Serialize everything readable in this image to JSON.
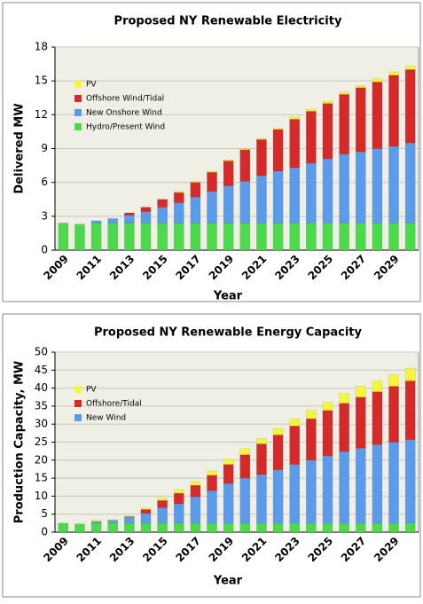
{
  "chart_data": [
    {
      "type": "stacked_bar",
      "title": "Proposed NY Renewable Electricity",
      "x_label": "Year",
      "y_label": "Delivered MW",
      "categories": [
        "2009",
        null,
        "2011",
        null,
        "2013",
        null,
        "2015",
        null,
        "2017",
        null,
        "2019",
        null,
        "2021",
        null,
        "2023",
        null,
        "2025",
        null,
        "2027",
        null,
        "2029",
        null
      ],
      "series": [
        {
          "name": "Hydro/Present Wind",
          "color": "#4cd94c",
          "values": [
            2.4,
            2.3,
            2.4,
            2.4,
            2.4,
            2.4,
            2.4,
            2.4,
            2.4,
            2.4,
            2.4,
            2.4,
            2.4,
            2.4,
            2.4,
            2.4,
            2.4,
            2.4,
            2.4,
            2.4,
            2.4,
            2.4
          ]
        },
        {
          "name": "New Onshore Wind",
          "color": "#5b9bea",
          "values": [
            0,
            0,
            0.2,
            0.4,
            0.7,
            1.0,
            1.4,
            1.8,
            2.3,
            2.8,
            3.3,
            3.7,
            4.2,
            4.6,
            4.9,
            5.3,
            5.7,
            6.1,
            6.3,
            6.6,
            6.8,
            7.1
          ]
        },
        {
          "name": "Offshore Wind/Tidal",
          "color": "#d42a2a",
          "values": [
            0,
            0,
            0,
            0,
            0.2,
            0.4,
            0.7,
            0.9,
            1.3,
            1.7,
            2.2,
            2.8,
            3.2,
            3.7,
            4.3,
            4.6,
            4.9,
            5.3,
            5.7,
            5.9,
            6.3,
            6.5
          ]
        },
        {
          "name": "PV",
          "color": "#f5f53a",
          "values": [
            0,
            0,
            0,
            0,
            0,
            0,
            0,
            0.1,
            0.1,
            0.1,
            0.1,
            0.1,
            0.1,
            0.1,
            0.2,
            0.2,
            0.2,
            0.2,
            0.2,
            0.3,
            0.3,
            0.3
          ]
        }
      ],
      "ylim": [
        0,
        18
      ],
      "yticks": [
        0,
        3,
        6,
        9,
        12,
        15,
        18
      ],
      "grid": true,
      "legend": "upper left"
    },
    {
      "type": "stacked_bar",
      "title": "Proposed NY Renewable Energy Capacity",
      "x_label": "Year",
      "y_label": "Production Capacity, MW",
      "categories": [
        "2009",
        null,
        "2011",
        null,
        "2013",
        null,
        "2015",
        null,
        "2017",
        null,
        "2019",
        null,
        "2021",
        null,
        "2023",
        null,
        "2025",
        null,
        "2027",
        null,
        "2029",
        null
      ],
      "series": [
        {
          "color": "#4cd94c",
          "values": [
            2.5,
            2.3,
            2.5,
            2.5,
            2.5,
            2.5,
            2.5,
            2.5,
            2.5,
            2.5,
            2.5,
            2.5,
            2.5,
            2.5,
            2.5,
            2.5,
            2.5,
            2.5,
            2.5,
            2.5,
            2.5,
            2.5
          ]
        },
        {
          "name": "New Wind",
          "color": "#5b9bea",
          "values": [
            0,
            0,
            0.5,
            0.8,
            1.7,
            2.7,
            4.3,
            5.4,
            7.3,
            9.0,
            11.0,
            12.5,
            13.5,
            14.8,
            16.3,
            17.5,
            18.7,
            19.9,
            20.8,
            21.8,
            22.5,
            23.2
          ]
        },
        {
          "name": "Offshore/Tidal",
          "color": "#d42a2a",
          "values": [
            0,
            0,
            0,
            0,
            0.1,
            1.1,
            2.0,
            2.9,
            3.2,
            4.3,
            5.3,
            6.5,
            8.5,
            9.7,
            10.7,
            11.5,
            12.6,
            13.4,
            14.2,
            14.7,
            15.5,
            16.3
          ]
        },
        {
          "name": "PV",
          "color": "#f5f53a",
          "values": [
            0,
            0,
            0.3,
            0.2,
            0.2,
            0.4,
            0.7,
            1.0,
            1.0,
            1.2,
            1.5,
            1.7,
            1.5,
            1.8,
            2.0,
            2.3,
            2.2,
            2.7,
            3.0,
            3.0,
            3.3,
            3.5
          ]
        }
      ],
      "ylim": [
        0,
        50
      ],
      "yticks": [
        0,
        5,
        10,
        15,
        20,
        25,
        30,
        35,
        40,
        45,
        50
      ],
      "grid": true,
      "legend": "upper left"
    }
  ]
}
